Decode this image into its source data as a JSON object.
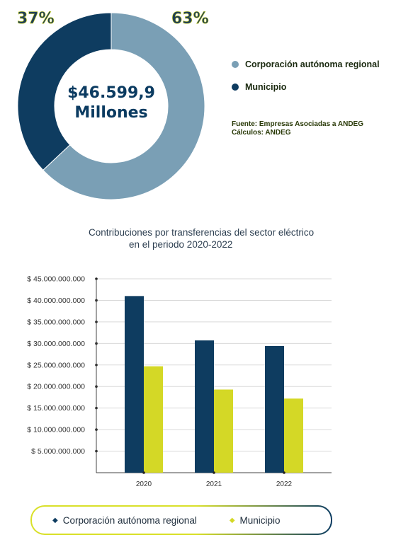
{
  "donut": {
    "pct_left": "37%",
    "pct_right": "63%",
    "center_line1": "$46.599,9",
    "center_line2": "Millones",
    "legend": [
      {
        "label": "Corporación autónoma regional",
        "color": "#7a9fb5"
      },
      {
        "label": "Municipio",
        "color": "#0e3c60"
      }
    ],
    "source_line1": "Fuente: Empresas Asociadas a ANDEG",
    "source_line2": "Cálculos: ANDEG"
  },
  "chart_data": [
    {
      "type": "pie",
      "variant": "donut",
      "categories": [
        "Corporación autónoma regional",
        "Municipio"
      ],
      "values": [
        63,
        37
      ],
      "colors": [
        "#7a9fb5",
        "#0e3c60"
      ],
      "center_label": "$46.599,9 Millones"
    },
    {
      "type": "bar",
      "title_line1": "Contribuciones por transferencias del sector eléctrico",
      "title_line2": "en el periodo 2020-2022",
      "categories": [
        "2020",
        "2021",
        "2022"
      ],
      "series": [
        {
          "name": "Corporación autónoma regional",
          "color": "#0e3c60",
          "values": [
            41000000000,
            30700000000,
            29400000000
          ]
        },
        {
          "name": "Municipio",
          "color": "#d4d826",
          "values": [
            24700000000,
            19300000000,
            17200000000
          ]
        }
      ],
      "ylim": [
        0,
        45000000000
      ],
      "yticks": [
        5000000000,
        10000000000,
        15000000000,
        20000000000,
        25000000000,
        30000000000,
        35000000000,
        40000000000,
        45000000000
      ],
      "ytick_labels": [
        "$ 5.000.000.000",
        "$ 10.000.000.000",
        "$ 15.000.000.000",
        "$ 20.000.000.000",
        "$ 25.000.000.000",
        "$ 30.000.000.000",
        "$ 35.000.000.000",
        "$ 40.000.000.000",
        "$ 45.000.000.000"
      ],
      "grid": true,
      "legend_position": "bottom",
      "legend": [
        {
          "label": "Corporación autónoma regional",
          "marker": "◆",
          "color": "#0e3c60"
        },
        {
          "label": "Municipio",
          "marker": "◆",
          "color": "#d4d826"
        }
      ]
    }
  ]
}
